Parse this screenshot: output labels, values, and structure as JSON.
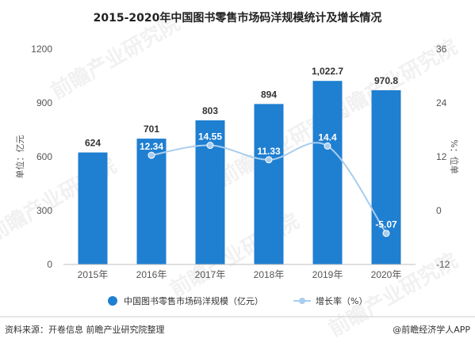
{
  "chart_data": {
    "type": "bar",
    "title": "2015-2020年中国图书零售市场码洋规模统计及增长情况",
    "categories": [
      "2015年",
      "2016年",
      "2017年",
      "2018年",
      "2019年",
      "2020年"
    ],
    "series": [
      {
        "name": "中国图书零售市场码洋规模（亿元）",
        "type": "bar",
        "axis": "left",
        "values": [
          624,
          701,
          803,
          894,
          1022.7,
          970.8
        ],
        "labels": [
          "624",
          "701",
          "803",
          "894",
          "1,022.7",
          "970.8"
        ],
        "color": "#1f7fd1"
      },
      {
        "name": "增长率（%）",
        "type": "line",
        "axis": "right",
        "values": [
          null,
          12.34,
          14.55,
          11.33,
          14.4,
          -5.07
        ],
        "labels": [
          "",
          "12.34",
          "14.55",
          "11.33",
          "14.4",
          "-5.07"
        ],
        "color": "#a9cdee"
      }
    ],
    "ylabel": "单位：亿元",
    "ylim": [
      0,
      1200
    ],
    "yticks": [
      "0",
      "300",
      "600",
      "900",
      "1200"
    ],
    "y2label": "%：位单",
    "y2lim": [
      -12,
      36
    ],
    "y2ticks": [
      "-12",
      "0",
      "12",
      "24",
      "36"
    ],
    "grid": false,
    "legend_position": "bottom"
  },
  "footer": {
    "source": "资料来源：开卷信息 前瞻产业研究院整理",
    "brand": "@前瞻经济学人APP"
  },
  "watermark": "前瞻产业研究院"
}
